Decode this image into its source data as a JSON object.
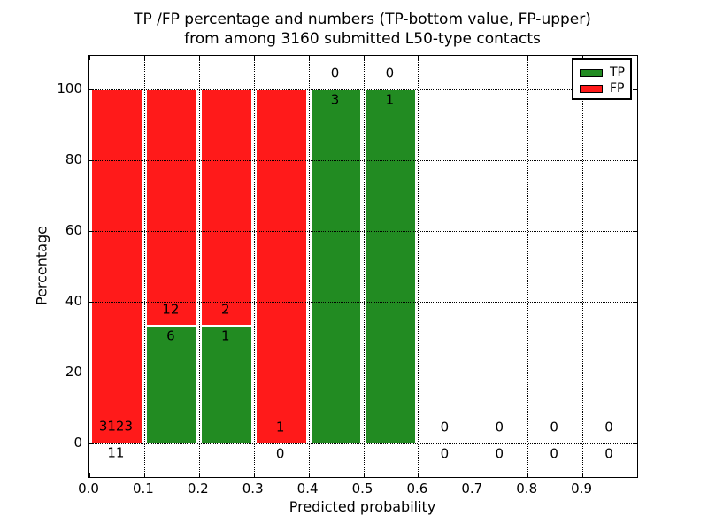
{
  "figure": {
    "title_line1": "TP /FP percentage and numbers (TP-bottom value, FP-upper)",
    "title_line2": "from among 3160 submitted L50-type contacts"
  },
  "chart_data": {
    "type": "bar",
    "stacked": true,
    "title": "TP /FP percentage and numbers (TP-bottom value, FP-upper) from among 3160 submitted L50-type contacts",
    "xlabel": "Predicted probability",
    "ylabel": "Percentage",
    "xlim": [
      0.0,
      1.0
    ],
    "ylim": [
      -9.5,
      109.5
    ],
    "x_ticks": [
      0.0,
      0.1,
      0.2,
      0.3,
      0.4,
      0.5,
      0.6,
      0.7,
      0.8,
      0.9
    ],
    "x_tick_labels": [
      "0.0",
      "0.1",
      "0.2",
      "0.3",
      "0.4",
      "0.5",
      "0.6",
      "0.7",
      "0.8",
      "0.9"
    ],
    "y_ticks": [
      0,
      20,
      40,
      60,
      80,
      100
    ],
    "y_tick_labels": [
      "0",
      "20",
      "40",
      "60",
      "80",
      "100"
    ],
    "grid": true,
    "grid_style": "dotted",
    "total_contacts": 3160,
    "colors": {
      "tp": "#228b22",
      "fp": "#ff1a1a"
    },
    "legend": {
      "position": "upper right",
      "entries": [
        {
          "label": "TP",
          "color": "#228b22"
        },
        {
          "label": "FP",
          "color": "#ff1a1a"
        }
      ]
    },
    "note": "Each 0.1-wide probability bin stacks TP% (green, bottom) and FP% (red, top) to 100%; numeric labels show raw counts: TP below the boundary, FP above it.",
    "bins": [
      {
        "x_start": 0.0,
        "x_end": 0.1,
        "tp_count": 11,
        "fp_count": 3123,
        "tp_pct": 0.35,
        "fp_pct": 99.65
      },
      {
        "x_start": 0.1,
        "x_end": 0.2,
        "tp_count": 6,
        "fp_count": 12,
        "tp_pct": 33.33,
        "fp_pct": 66.67
      },
      {
        "x_start": 0.2,
        "x_end": 0.3,
        "tp_count": 1,
        "fp_count": 2,
        "tp_pct": 33.33,
        "fp_pct": 66.67
      },
      {
        "x_start": 0.3,
        "x_end": 0.4,
        "tp_count": 0,
        "fp_count": 1,
        "tp_pct": 0,
        "fp_pct": 100
      },
      {
        "x_start": 0.4,
        "x_end": 0.5,
        "tp_count": 3,
        "fp_count": 0,
        "tp_pct": 100,
        "fp_pct": 0
      },
      {
        "x_start": 0.5,
        "x_end": 0.6,
        "tp_count": 1,
        "fp_count": 0,
        "tp_pct": 100,
        "fp_pct": 0
      },
      {
        "x_start": 0.6,
        "x_end": 0.7,
        "tp_count": 0,
        "fp_count": 0,
        "tp_pct": 0,
        "fp_pct": 0
      },
      {
        "x_start": 0.7,
        "x_end": 0.8,
        "tp_count": 0,
        "fp_count": 0,
        "tp_pct": 0,
        "fp_pct": 0
      },
      {
        "x_start": 0.8,
        "x_end": 0.9,
        "tp_count": 0,
        "fp_count": 0,
        "tp_pct": 0,
        "fp_pct": 0
      },
      {
        "x_start": 0.9,
        "x_end": 1.0,
        "tp_count": 0,
        "fp_count": 0,
        "tp_pct": 0,
        "fp_pct": 0
      }
    ]
  }
}
